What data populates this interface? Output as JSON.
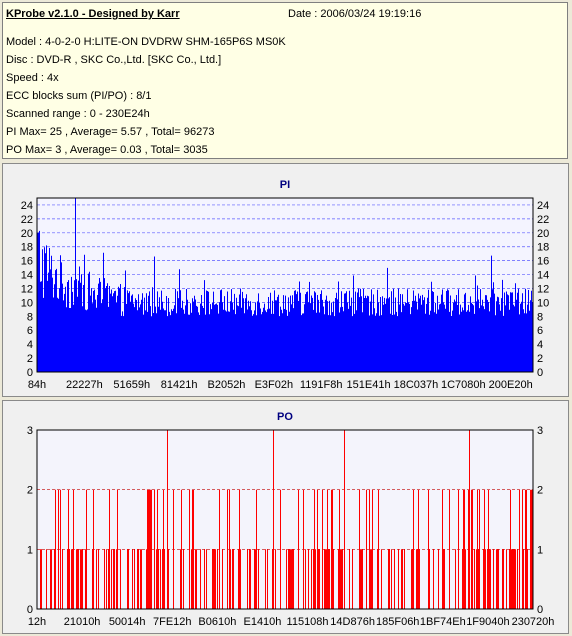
{
  "header": {
    "title": "KProbe v2.1.0 - Designed by Karr",
    "date": "Date : 2006/03/24 19:19:16",
    "lines": [
      "Model : 4-0-2-0 H:LITE-ON DVDRW SHM-165P6S MS0K",
      "Disc : DVD-R , SKC Co.,Ltd. [SKC Co., Ltd.]",
      "Speed : 4x",
      "ECC blocks sum (PI/PO) : 8/1",
      "Scanned range : 0 - 230E24h",
      "PI Max= 25 , Average= 5.57 , Total= 96273",
      "PO Max= 3 , Average= 0.03 , Total= 3035"
    ]
  },
  "colors": {
    "pi": "#0000ff",
    "po": "#ff0000",
    "title": "#000080",
    "grid": "#5a5aff",
    "po_grid": "#c00000"
  },
  "chart_data": [
    {
      "type": "bar",
      "title": "PI",
      "ylim": [
        0,
        25
      ],
      "yticks": [
        0,
        2,
        4,
        6,
        8,
        10,
        12,
        14,
        16,
        18,
        20,
        22,
        24
      ],
      "xticklabels": [
        "84h",
        "22227h",
        "51659h",
        "81421h",
        "B2052h",
        "E3F02h",
        "1191F8h",
        "151E41h",
        "18C037h",
        "1C7080h",
        "200E20h"
      ],
      "max": 25,
      "average": 5.57,
      "grid": true,
      "envelope": {
        "x": [
          0,
          0.01,
          0.03,
          0.06,
          0.09,
          0.12,
          0.15,
          0.2,
          0.3,
          0.4,
          0.5,
          0.6,
          0.7,
          0.8,
          0.9,
          1.0
        ],
        "upper": [
          24,
          21,
          18,
          16,
          15,
          14,
          13,
          12,
          12,
          12,
          12,
          12,
          12,
          12,
          12,
          12
        ],
        "lower": [
          10,
          10,
          10,
          9,
          9,
          8,
          8,
          8,
          8,
          8,
          8,
          8,
          8,
          8,
          8,
          8
        ]
      }
    },
    {
      "type": "bar",
      "title": "PO",
      "ylim": [
        0,
        3
      ],
      "yticks": [
        0,
        1,
        2,
        3
      ],
      "xticklabels": [
        "12h",
        "21010h",
        "50014h",
        "7FE12h",
        "B0610h",
        "E1410h",
        "115108h",
        "14D876h",
        "185F06h",
        "1BF74Eh",
        "1F9040h",
        "230720h"
      ],
      "max": 3,
      "average": 0.03,
      "grid": true,
      "spikes3_at": [
        0.262,
        0.476,
        0.618,
        0.87
      ]
    }
  ]
}
